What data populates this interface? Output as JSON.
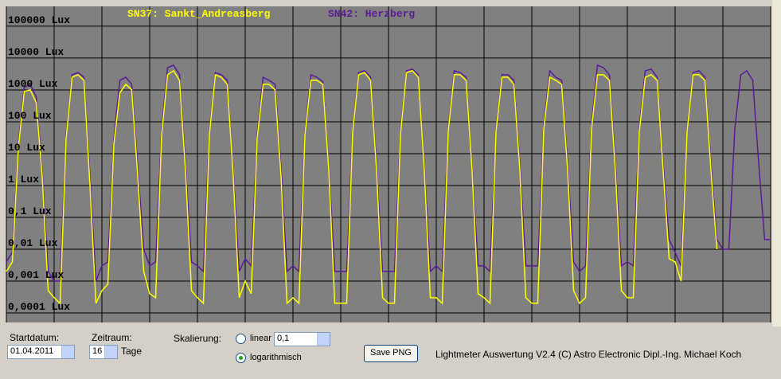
{
  "chart_data": {
    "type": "line",
    "log_scale": true,
    "grid": true,
    "background": "#808080",
    "grid_color": "#000000",
    "ylim": [
      5e-05,
      420000
    ],
    "yticks": [
      {
        "value": 100000,
        "label": "100000 Lux"
      },
      {
        "value": 10000,
        "label": "10000 Lux"
      },
      {
        "value": 1000,
        "label": "1000 Lux"
      },
      {
        "value": 100,
        "label": "100 Lux"
      },
      {
        "value": 10,
        "label": "10 Lux"
      },
      {
        "value": 1,
        "label": "1 Lux"
      },
      {
        "value": 0.1,
        "label": "0,1 Lux"
      },
      {
        "value": 0.01,
        "label": "0,01 Lux"
      },
      {
        "value": 0.001,
        "label": "0,001 Lux"
      },
      {
        "value": 0.0001,
        "label": "0,0001 Lux"
      }
    ],
    "xlim": [
      0,
      384
    ],
    "xticks": [
      0,
      24,
      48,
      72,
      96,
      120,
      144,
      168,
      192,
      216,
      240,
      264,
      288,
      312,
      336,
      360,
      384
    ],
    "x": [
      0,
      3,
      6,
      9,
      12,
      15,
      18,
      21,
      24,
      27,
      30,
      33,
      36,
      39,
      42,
      45,
      48,
      51,
      54,
      57,
      60,
      63,
      66,
      69,
      72,
      75,
      78,
      81,
      84,
      87,
      90,
      93,
      96,
      99,
      102,
      105,
      108,
      111,
      114,
      117,
      120,
      123,
      126,
      129,
      132,
      135,
      138,
      141,
      144,
      147,
      150,
      153,
      156,
      159,
      162,
      165,
      168,
      171,
      174,
      177,
      180,
      183,
      186,
      189,
      192,
      195,
      198,
      201,
      204,
      207,
      210,
      213,
      216,
      219,
      222,
      225,
      228,
      231,
      234,
      237,
      240,
      243,
      246,
      249,
      252,
      255,
      258,
      261,
      264,
      267,
      270,
      273,
      276,
      279,
      282,
      285,
      288,
      291,
      294,
      297,
      300,
      303,
      306,
      309,
      312,
      315,
      318,
      321,
      324,
      327,
      330,
      333,
      336,
      339,
      342,
      345,
      348,
      351,
      354,
      357,
      360,
      363,
      366,
      369,
      372,
      375,
      378,
      381,
      384
    ],
    "series": [
      {
        "name": "SN42: Herzberg",
        "color": "#5a1a96",
        "values": [
          0.004,
          0.008,
          20,
          1200,
          1500,
          600,
          3,
          0.002,
          0.001,
          0.001,
          40,
          3000,
          3500,
          2500,
          2,
          0.001,
          0.003,
          0.004,
          30,
          2000,
          2500,
          1500,
          4,
          0.01,
          0.003,
          0.004,
          60,
          5000,
          6000,
          3000,
          5,
          0.004,
          0.003,
          0.002,
          50,
          3500,
          3000,
          2000,
          3,
          0.002,
          0.005,
          0.003,
          40,
          2500,
          2000,
          1500,
          4,
          0.002,
          0.003,
          0.002,
          50,
          3000,
          2500,
          1800,
          4,
          0.002,
          0.002,
          0.002,
          60,
          3500,
          4000,
          2500,
          5,
          0.002,
          0.002,
          0.002,
          50,
          4000,
          4500,
          3000,
          4,
          0.002,
          0.003,
          0.002,
          60,
          4000,
          3500,
          2500,
          4,
          0.003,
          0.003,
          0.002,
          60,
          3000,
          3000,
          2000,
          5,
          0.003,
          0.003,
          0.003,
          80,
          4000,
          2500,
          2000,
          5,
          0.004,
          0.002,
          0.003,
          80,
          6000,
          5000,
          3000,
          5,
          0.003,
          0.004,
          0.003,
          70,
          4000,
          4500,
          2500,
          5,
          0.02,
          0.008,
          0.003,
          60,
          3500,
          4000,
          2500,
          5,
          0.02,
          0.01,
          0.01,
          60,
          3000,
          4000,
          2000,
          5,
          0.02,
          0.02
        ]
      },
      {
        "name": "SN37: Sankt_Andreasberg",
        "color": "#ffff00",
        "values": [
          0.002,
          0.004,
          15,
          900,
          1000,
          400,
          2,
          0.0005,
          0.0003,
          0.0002,
          30,
          2500,
          3000,
          2000,
          1,
          0.0002,
          0.0005,
          0.0008,
          20,
          800,
          1500,
          1000,
          2,
          0.002,
          0.0004,
          0.0003,
          40,
          3000,
          4000,
          2000,
          3,
          0.0005,
          0.0003,
          0.0002,
          40,
          3000,
          2500,
          1500,
          2,
          0.0003,
          0.001,
          0.0004,
          30,
          1500,
          1500,
          1000,
          2,
          0.0002,
          0.0003,
          0.0002,
          40,
          2000,
          2000,
          1500,
          3,
          0.0002,
          0.0002,
          0.0002,
          50,
          3000,
          3500,
          2000,
          3,
          0.0003,
          0.0002,
          0.0002,
          40,
          3500,
          4000,
          2500,
          3,
          0.0003,
          0.0003,
          0.0002,
          50,
          3000,
          3000,
          2000,
          3,
          0.0004,
          0.0003,
          0.0002,
          50,
          2500,
          2500,
          1500,
          3,
          0.0003,
          0.0002,
          0.0002,
          60,
          2500,
          2000,
          1500,
          3,
          0.0005,
          0.0002,
          0.0003,
          60,
          3000,
          3000,
          2000,
          3,
          0.0005,
          0.0003,
          0.0003,
          50,
          2500,
          3000,
          2000,
          3,
          0.005,
          0.004,
          0.001,
          50,
          3000,
          3000,
          2000,
          3,
          0.01,
          null,
          null,
          null,
          null,
          null,
          null,
          null,
          null,
          null
        ]
      }
    ]
  },
  "controls": {
    "start_label": "Startdatum:",
    "start_value": "01.04.2011",
    "period_label": "Zeitraum:",
    "period_value": "16",
    "period_unit": "Tage",
    "scale_label": "Skalierung:",
    "linear_label": "linear",
    "linear_value": "0,1",
    "log_label": "logarithmisch",
    "save_button": "Save PNG",
    "credits": "Lightmeter Auswertung V2.4  (C) Astro Electronic Dipl.-Ing. Michael Koch"
  }
}
